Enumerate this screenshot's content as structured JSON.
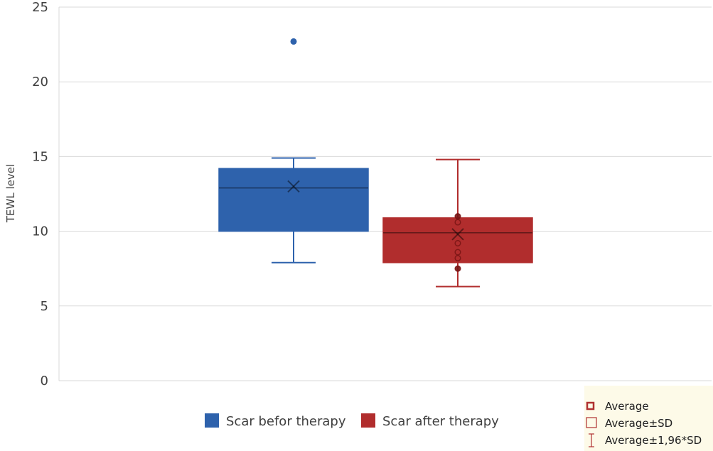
{
  "chart_data": {
    "type": "box",
    "title": "",
    "xlabel": "",
    "ylabel": "TEWL level",
    "ylim": [
      0,
      25
    ],
    "yticks": [
      0,
      5,
      10,
      15,
      20,
      25
    ],
    "grid": true,
    "legend_position": "bottom",
    "series": [
      {
        "name": "Scar befor therapy",
        "color": "#2e62ac",
        "min": 7.9,
        "q1": 10.0,
        "median": 12.9,
        "q3": 14.2,
        "max": 14.9,
        "mean": 13.0,
        "outliers": [
          22.7
        ],
        "inner_points": []
      },
      {
        "name": "Scar after therapy",
        "color": "#b12d2d",
        "min": 6.3,
        "q1": 7.9,
        "median": 9.9,
        "q3": 10.9,
        "max": 14.8,
        "mean": 9.8,
        "outliers": [],
        "inner_points": [
          11.0,
          10.6,
          9.2,
          8.6,
          8.2,
          7.5
        ]
      }
    ]
  },
  "key_box": {
    "items": [
      "Average",
      "Average±SD",
      "Average±1,96*SD"
    ],
    "color": "#b03030",
    "background": "#fdfae8"
  }
}
